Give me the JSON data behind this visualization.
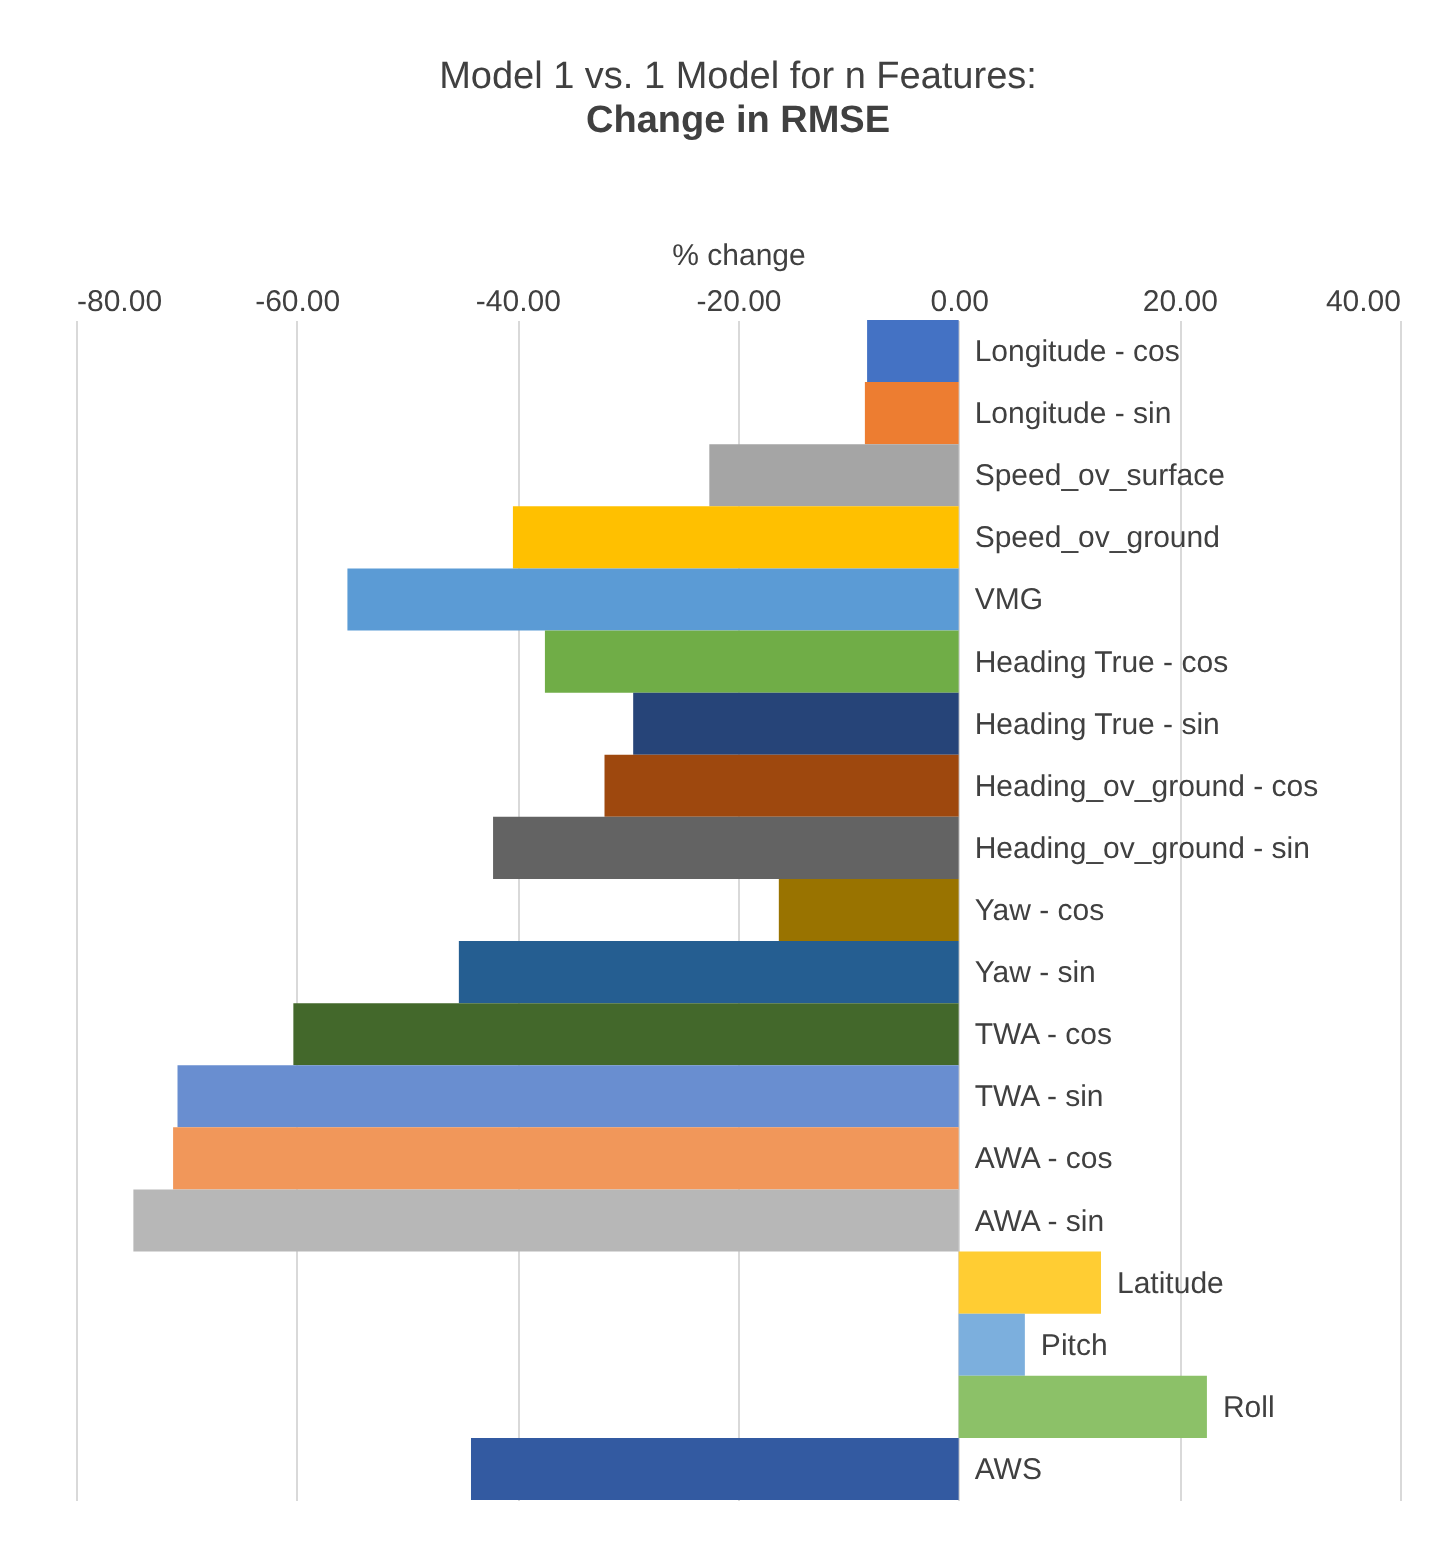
{
  "chart_data": {
    "type": "bar",
    "orientation": "horizontal",
    "title": "Model 1 vs. 1 Model for n Features:",
    "subtitle": "Change in RMSE",
    "xlabel": "% change",
    "categories": [
      "Longitude - cos",
      "Longitude - sin",
      "Speed_ov_surface",
      "Speed_ov_ground",
      "VMG",
      "Heading True - cos",
      "Heading True - sin",
      "Heading_ov_ground - cos",
      "Heading_ov_ground - sin",
      "Yaw - cos",
      "Yaw - sin",
      "TWA - cos",
      "TWA - sin",
      "AWA - cos",
      "AWA - sin",
      "Latitude",
      "Pitch",
      "Roll",
      "AWS"
    ],
    "values": [
      -8.3,
      -8.5,
      -22.6,
      -40.4,
      -55.4,
      -37.5,
      -29.5,
      -32.1,
      -42.2,
      -16.3,
      -45.3,
      -60.3,
      -70.8,
      -71.2,
      -74.8,
      12.9,
      6.0,
      22.5,
      -44.2
    ],
    "colors": [
      "#4472c4",
      "#ed7d31",
      "#a5a5a5",
      "#ffc000",
      "#5b9bd5",
      "#70ad47",
      "#264478",
      "#9e480e",
      "#636363",
      "#997300",
      "#255e91",
      "#43682b",
      "#698ed0",
      "#f1975a",
      "#b7b7b7",
      "#ffcd33",
      "#7cafdd",
      "#8cc168",
      "#335aa1"
    ],
    "xlim": [
      -80,
      40
    ],
    "xticks": [
      {
        "value": -80,
        "label": "-80.00"
      },
      {
        "value": -60,
        "label": "-60.00"
      },
      {
        "value": -40,
        "label": "-40.00"
      },
      {
        "value": -20,
        "label": "-20.00"
      },
      {
        "value": 0,
        "label": "0.00"
      },
      {
        "value": 20,
        "label": "20.00"
      },
      {
        "value": 40,
        "label": "40.00"
      }
    ],
    "grid": "x"
  }
}
